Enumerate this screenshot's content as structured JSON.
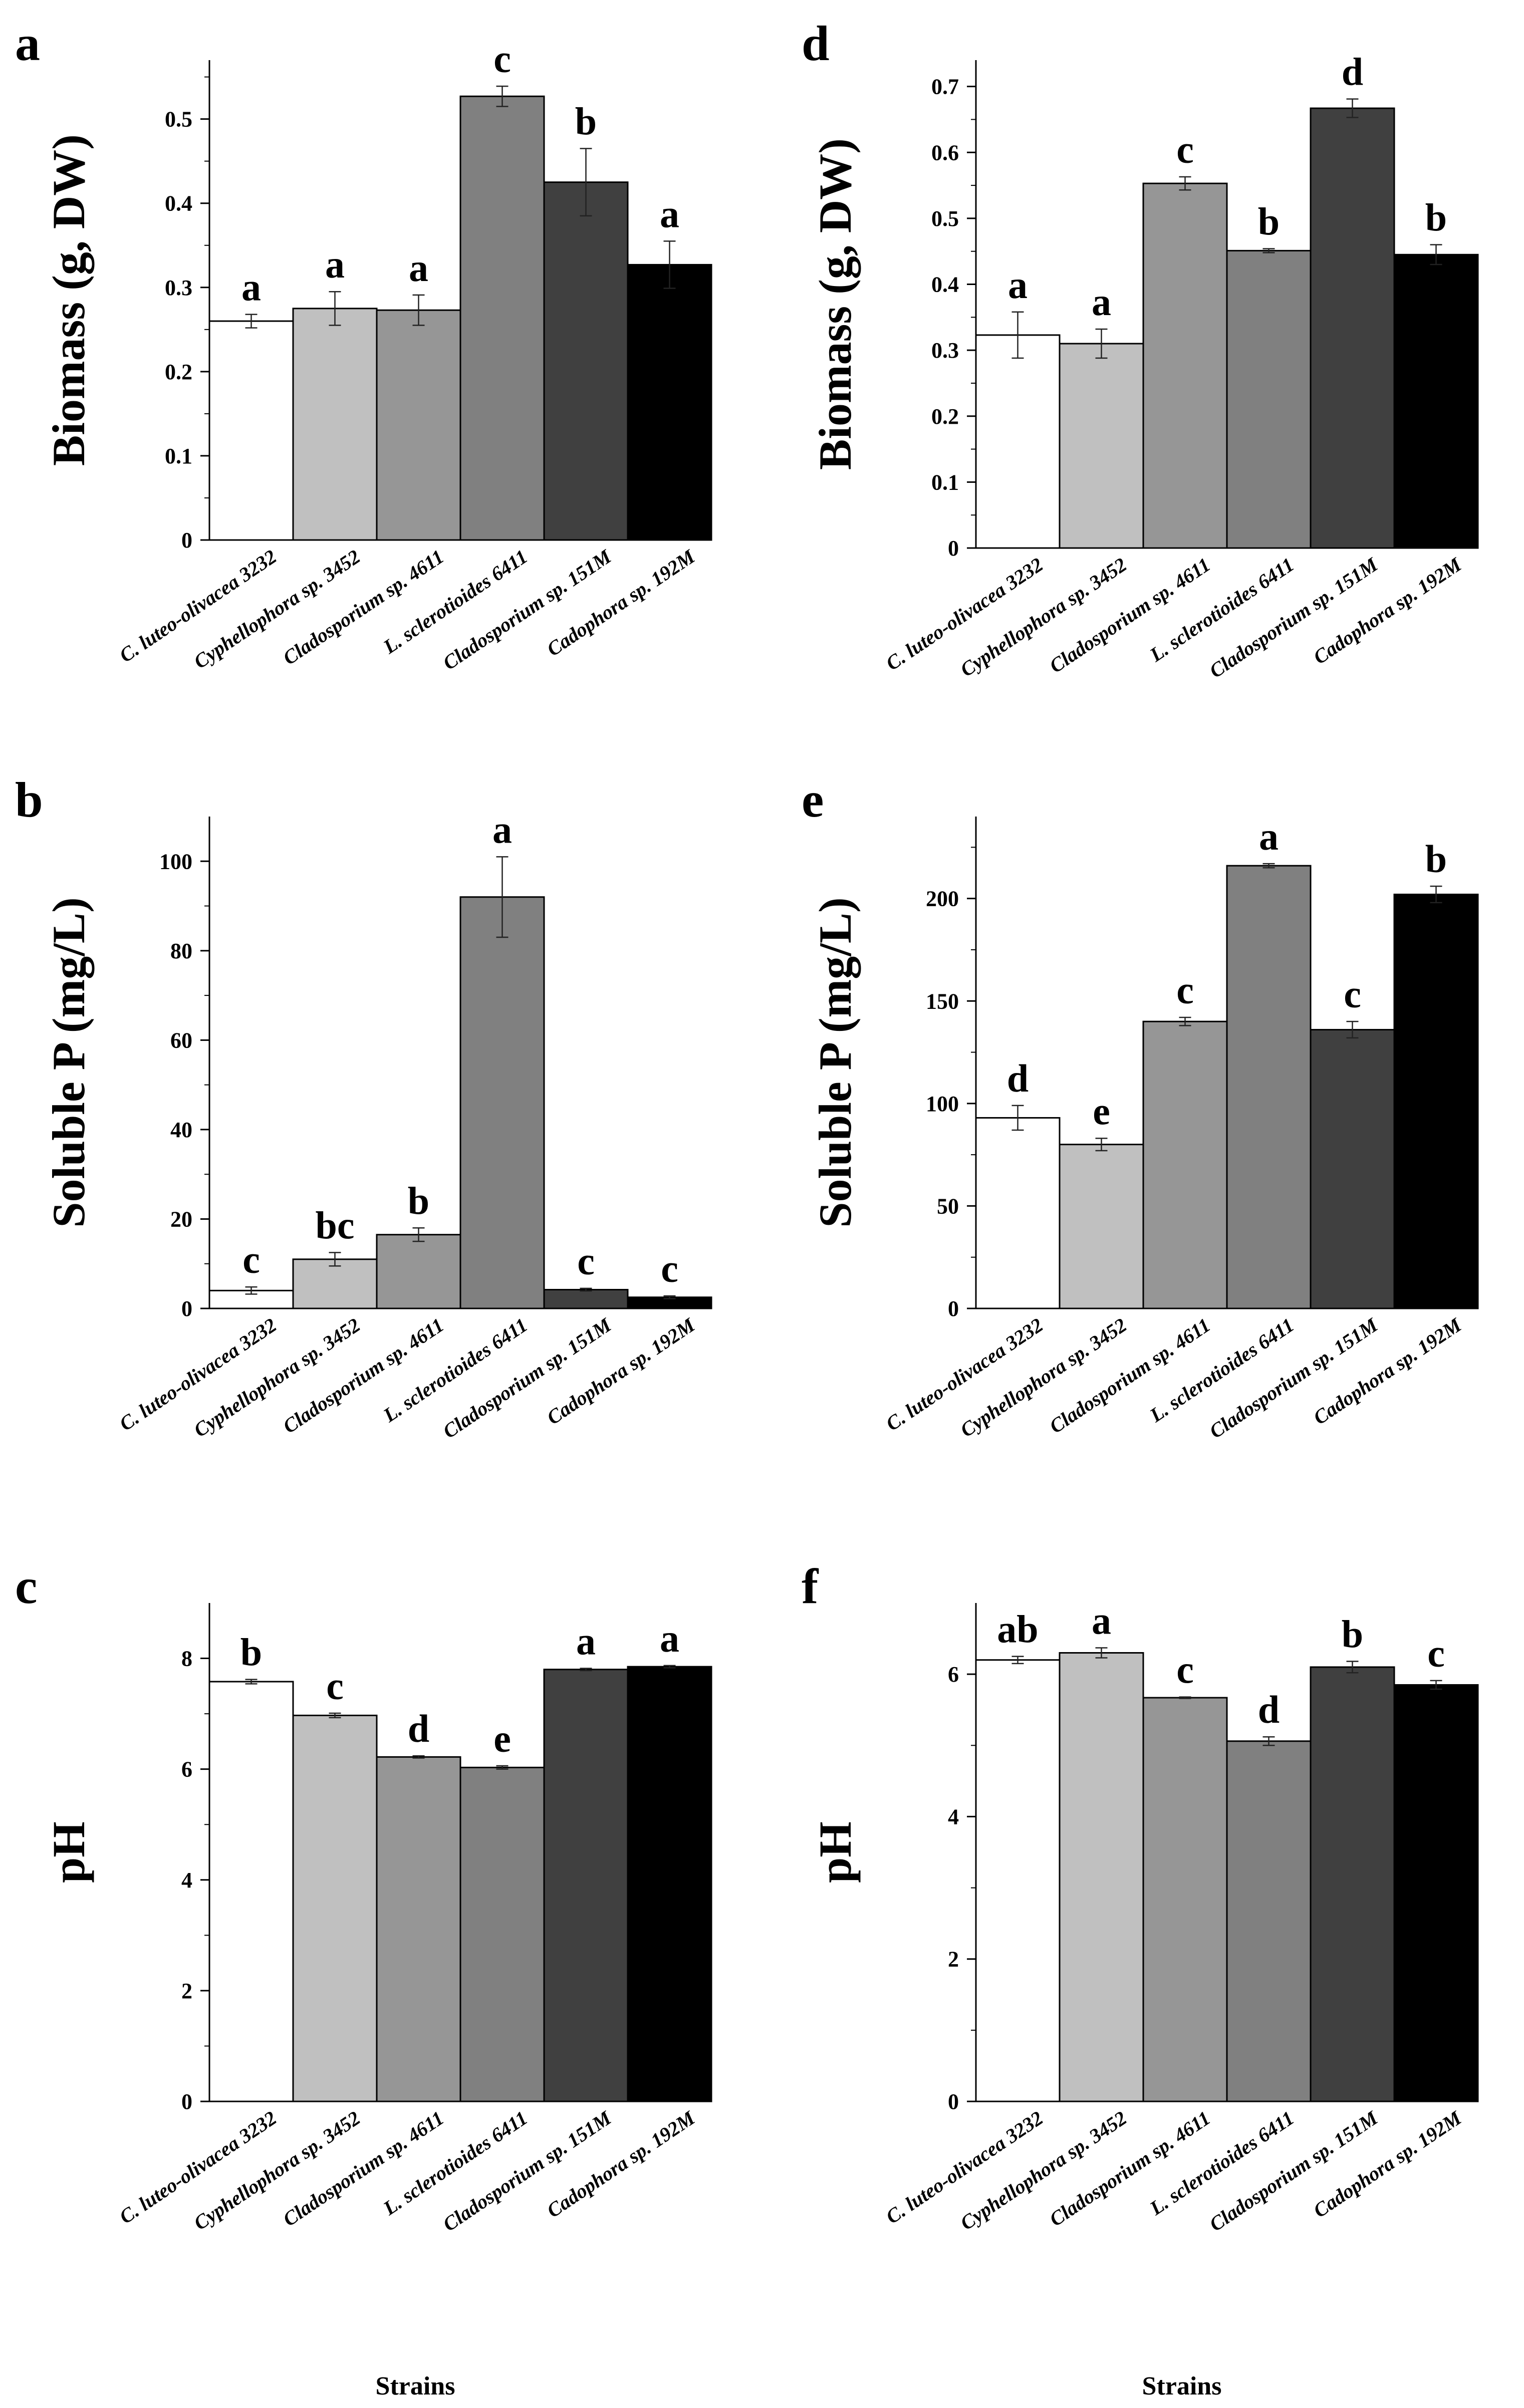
{
  "figure": {
    "categories": [
      "C. luteo-olivacea 3232",
      "Cyphellophora sp. 3452",
      "Cladosporium sp. 4611",
      "L. sclerotioides 6411",
      "Cladosporium sp. 151M",
      "Cadophora sp. 192M"
    ],
    "bar_colors": [
      "#ffffff",
      "#c0c0c0",
      "#969696",
      "#808080",
      "#404040",
      "#000000"
    ],
    "x_axis_label": "Strains"
  },
  "chart_data": [
    {
      "panel": "a",
      "type": "bar",
      "ylabel": "Biomass (g, DW)",
      "ylim": [
        0,
        0.57
      ],
      "yticks": [
        0,
        0.1,
        0.2,
        0.3,
        0.4,
        0.5
      ],
      "ytick_labels": [
        "0",
        "0.1",
        "0.2",
        "0.3",
        "0.4",
        "0.5"
      ],
      "values": [
        0.26,
        0.275,
        0.273,
        0.527,
        0.425,
        0.327
      ],
      "errors": [
        0.008,
        0.02,
        0.018,
        0.012,
        0.04,
        0.028
      ],
      "letters": [
        "a",
        "a",
        "a",
        "c",
        "b",
        "a"
      ]
    },
    {
      "panel": "b",
      "type": "bar",
      "ylabel": "Soluble P (mg/L)",
      "ylim": [
        0,
        110
      ],
      "yticks": [
        0,
        20,
        40,
        60,
        80,
        100
      ],
      "ytick_labels": [
        "0",
        "20",
        "40",
        "60",
        "80",
        "100"
      ],
      "values": [
        4,
        11,
        16.5,
        92,
        4.2,
        2.5
      ],
      "errors": [
        0.8,
        1.5,
        1.5,
        9,
        0.3,
        0.3
      ],
      "letters": [
        "c",
        "bc",
        "b",
        "a",
        "c",
        "c"
      ]
    },
    {
      "panel": "c",
      "type": "bar",
      "ylabel": "pH",
      "ylim": [
        0,
        9
      ],
      "yticks": [
        0,
        2,
        4,
        6,
        8
      ],
      "ytick_labels": [
        "0",
        "2",
        "4",
        "6",
        "8"
      ],
      "values": [
        7.58,
        6.97,
        6.22,
        6.03,
        7.8,
        7.85
      ],
      "errors": [
        0.04,
        0.04,
        0.02,
        0.03,
        0.02,
        0.02
      ],
      "letters": [
        "b",
        "c",
        "d",
        "e",
        "a",
        "a"
      ]
    },
    {
      "panel": "d",
      "type": "bar",
      "ylabel": "Biomass (g, DW)",
      "ylim": [
        0,
        0.74
      ],
      "yticks": [
        0,
        0.1,
        0.2,
        0.3,
        0.4,
        0.5,
        0.6,
        0.7
      ],
      "ytick_labels": [
        "0",
        "0.1",
        "0.2",
        "0.3",
        "0.4",
        "0.5",
        "0.6",
        "0.7"
      ],
      "values": [
        0.323,
        0.31,
        0.553,
        0.451,
        0.667,
        0.445
      ],
      "errors": [
        0.035,
        0.022,
        0.01,
        0.003,
        0.014,
        0.015
      ],
      "letters": [
        "a",
        "a",
        "c",
        "b",
        "d",
        "b"
      ]
    },
    {
      "panel": "e",
      "type": "bar",
      "ylabel": "Soluble P (mg/L)",
      "ylim": [
        0,
        240
      ],
      "yticks": [
        0,
        50,
        100,
        150,
        200
      ],
      "ytick_labels": [
        "0",
        "50",
        "100",
        "150",
        "200"
      ],
      "values": [
        93,
        80,
        140,
        216,
        136,
        202
      ],
      "errors": [
        6,
        3,
        2,
        1,
        4,
        4
      ],
      "letters": [
        "d",
        "e",
        "c",
        "a",
        "c",
        "b"
      ]
    },
    {
      "panel": "f",
      "type": "bar",
      "ylabel": "pH",
      "ylim": [
        0,
        7
      ],
      "yticks": [
        0,
        2,
        4,
        6
      ],
      "ytick_labels": [
        "0",
        "2",
        "4",
        "6"
      ],
      "values": [
        6.2,
        6.3,
        5.67,
        5.06,
        6.1,
        5.85
      ],
      "errors": [
        0.05,
        0.07,
        0.01,
        0.06,
        0.08,
        0.06
      ],
      "letters": [
        "ab",
        "a",
        "c",
        "d",
        "b",
        "c"
      ]
    }
  ]
}
